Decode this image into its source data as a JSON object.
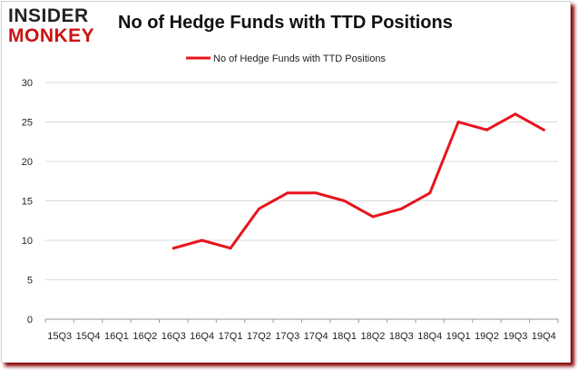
{
  "logo": {
    "line1": "INSIDER",
    "line2": "MONKEY"
  },
  "colors": {
    "series": "#e8141c",
    "grid": "#d9d9d9",
    "axis": "#9a9a9a",
    "shadow": "#8a0000"
  },
  "chart_data": {
    "type": "line",
    "title": "No of Hedge Funds with TTD Positions",
    "xlabel": "",
    "ylabel": "",
    "categories": [
      "15Q3",
      "15Q4",
      "16Q1",
      "16Q2",
      "16Q3",
      "16Q4",
      "17Q1",
      "17Q2",
      "17Q3",
      "17Q4",
      "18Q1",
      "18Q2",
      "18Q3",
      "18Q4",
      "19Q1",
      "19Q2",
      "19Q3",
      "19Q4"
    ],
    "series": [
      {
        "name": "No of Hedge Funds with TTD Positions",
        "values": [
          null,
          null,
          null,
          null,
          9,
          10,
          9,
          14,
          16,
          16,
          15,
          13,
          14,
          16,
          25,
          24,
          26,
          24
        ]
      }
    ],
    "ylim": [
      0,
      30
    ],
    "yticks": [
      0,
      5,
      10,
      15,
      20,
      25,
      30
    ],
    "grid": true,
    "legend": "top-center"
  }
}
